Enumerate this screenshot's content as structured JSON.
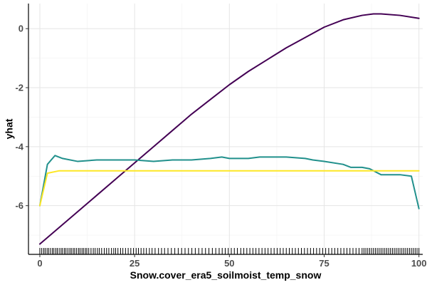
{
  "chart_data": {
    "type": "line",
    "title": "",
    "xlabel": "Snow.cover_era5_soilmoist_temp_snow",
    "ylabel": "yhat",
    "xlim": [
      -3,
      101
    ],
    "ylim": [
      -7.65,
      0.85
    ],
    "x_ticks": [
      0,
      25,
      50,
      75,
      100
    ],
    "y_ticks": [
      -6,
      -4,
      -2,
      0
    ],
    "grid": true,
    "legend": "none",
    "series": [
      {
        "color": "#440154",
        "x": [
          0,
          5,
          10,
          15,
          20,
          25,
          30,
          35,
          40,
          45,
          50,
          55,
          60,
          65,
          70,
          75,
          80,
          85,
          88,
          90,
          95,
          100
        ],
        "y": [
          -7.3,
          -6.75,
          -6.2,
          -5.65,
          -5.1,
          -4.55,
          -4.0,
          -3.45,
          -2.9,
          -2.4,
          -1.9,
          -1.45,
          -1.05,
          -0.65,
          -0.3,
          0.05,
          0.3,
          0.45,
          0.5,
          0.5,
          0.45,
          0.35
        ]
      },
      {
        "color": "#21908C",
        "x": [
          0,
          2,
          4,
          6,
          10,
          15,
          20,
          25,
          30,
          35,
          40,
          45,
          48,
          50,
          55,
          58,
          60,
          65,
          70,
          72,
          75,
          80,
          82,
          85,
          87,
          90,
          95,
          98,
          100
        ],
        "y": [
          -6.0,
          -4.6,
          -4.3,
          -4.4,
          -4.5,
          -4.45,
          -4.45,
          -4.45,
          -4.5,
          -4.45,
          -4.45,
          -4.4,
          -4.35,
          -4.4,
          -4.4,
          -4.35,
          -4.35,
          -4.35,
          -4.4,
          -4.45,
          -4.5,
          -4.6,
          -4.7,
          -4.7,
          -4.75,
          -4.95,
          -4.95,
          -5.0,
          -6.1
        ]
      },
      {
        "color": "#FDE725",
        "x": [
          0,
          2,
          5,
          25,
          50,
          75,
          100
        ],
        "y": [
          -6.0,
          -4.9,
          -4.82,
          -4.82,
          -4.82,
          -4.82,
          -4.82
        ]
      }
    ],
    "rug_x": [
      0,
      0.5,
      1,
      1.4,
      1.9,
      2.3,
      2.8,
      3.3,
      3.7,
      4.2,
      4.6,
      5.1,
      5.6,
      6,
      6.5,
      6.9,
      7.4,
      7.9,
      8.3,
      8.8,
      9.2,
      9.7,
      10.2,
      10.6,
      11.1,
      11.5,
      12,
      12.4,
      12.9,
      13.5,
      14.1,
      14.6,
      15.2,
      15.7,
      16.3,
      17,
      17.6,
      18.2,
      18.9,
      19.5,
      20,
      20.6,
      21.3,
      21.9,
      22.6,
      23.3,
      24,
      24.7,
      25.4,
      26,
      26.7,
      27.4,
      28.1,
      28.9,
      29.6,
      30.4,
      31.3,
      32.1,
      32.9,
      33.8,
      34.7,
      35.6,
      36.5,
      37.4,
      38.3,
      39.2,
      40.1,
      41,
      41.9,
      42.8,
      43.7,
      44.6,
      45.5,
      46.4,
      47.3,
      48.1,
      48.9,
      49.7,
      50.5,
      51.3,
      52.1,
      53,
      53.8,
      54.6,
      55.4,
      56.2,
      57,
      57.8,
      58.6,
      59.4,
      60.2,
      61,
      61.8,
      62.6,
      63.4,
      64.2,
      65,
      65.8,
      66.6,
      67.4,
      68.2,
      69,
      69.8,
      70.6,
      71.4,
      72.2,
      73,
      73.8,
      74.6,
      75.4,
      76.2,
      77,
      77.8,
      78.6,
      79.4,
      80.2,
      81,
      81.8,
      82.6,
      83.4,
      84.2,
      85,
      85.5,
      86,
      86.5,
      87,
      87.5,
      88,
      88.5,
      89,
      89.5,
      90,
      90.5,
      91,
      91.5,
      92,
      92.5,
      93,
      93.5,
      94,
      94.5,
      95,
      95.5,
      96,
      96.5,
      97,
      97.5,
      98,
      98.5,
      99,
      99.5,
      100
    ]
  }
}
